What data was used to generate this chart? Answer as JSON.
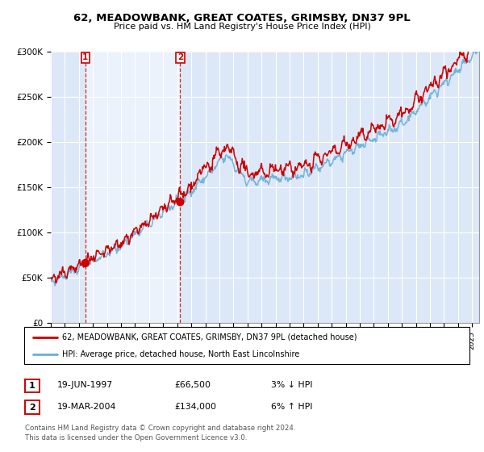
{
  "title1": "62, MEADOWBANK, GREAT COATES, GRIMSBY, DN37 9PL",
  "title2": "Price paid vs. HM Land Registry's House Price Index (HPI)",
  "plot_bg": "#dce8f8",
  "hpi_color": "#6aaed6",
  "price_color": "#cc0000",
  "sale1_date_x": 1997.46,
  "sale1_price": 66500,
  "sale2_date_x": 2004.21,
  "sale2_price": 134000,
  "legend_label1": "62, MEADOWBANK, GREAT COATES, GRIMSBY, DN37 9PL (detached house)",
  "legend_label2": "HPI: Average price, detached house, North East Lincolnshire",
  "table_row1": [
    "1",
    "19-JUN-1997",
    "£66,500",
    "3% ↓ HPI"
  ],
  "table_row2": [
    "2",
    "19-MAR-2004",
    "£134,000",
    "6% ↑ HPI"
  ],
  "footer": "Contains HM Land Registry data © Crown copyright and database right 2024.\nThis data is licensed under the Open Government Licence v3.0.",
  "xmin": 1995,
  "xmax": 2025.5,
  "ymin": 0,
  "ymax": 300000
}
